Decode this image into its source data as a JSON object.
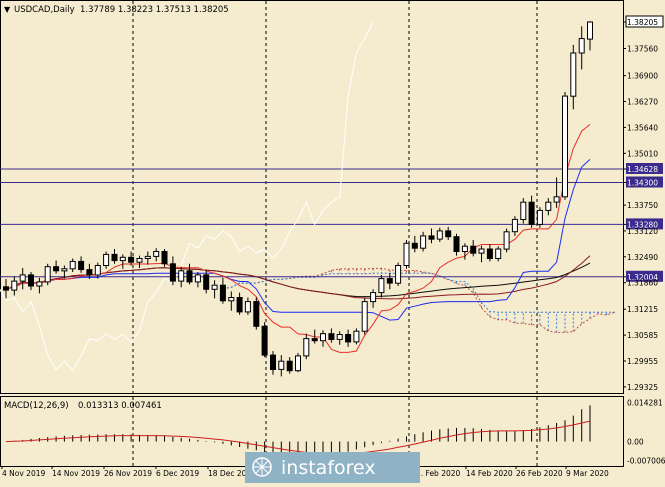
{
  "header": {
    "symbol_line": "USDCAD,Daily",
    "ohlc_line": "1.37789 1.38223 1.37513 1.38205"
  },
  "colors": {
    "background": "#f5ebcf",
    "bull_candle": "#ffffff",
    "bear_candle": "#000000",
    "tenkan": "#e8312a",
    "kijun": "#1a2cf0",
    "ma_fast": "#8b1a1a",
    "ma_slow": "#0d0d0d",
    "chikou": "#ffffff",
    "kumo_bull": "#c24b3a",
    "kumo_bear": "#3c7fd6",
    "levels": "#3b2b8c",
    "macd_hist": "#000000",
    "macd_signal": "#cc1f1f",
    "watermark_bg": "#8fb2c4"
  },
  "chart_data": [
    {
      "type": "candlestick",
      "symbol": "USDCAD",
      "timeframe": "Daily",
      "ylim": [
        1.2925,
        1.3835
      ],
      "y_ticks": [
        "1.38205",
        "1.37560",
        "1.36900",
        "1.36270",
        "1.35640",
        "1.35010",
        "1.34628",
        "1.34300",
        "1.33750",
        "1.33280",
        "1.33120",
        "1.32490",
        "1.32004",
        "1.31860",
        "1.31215",
        "1.30585",
        "1.29955",
        "1.29325"
      ],
      "x_labels": [
        "4 Nov 2019",
        "14 Nov 2019",
        "26 Nov 2019",
        "6 Dec 2019",
        "18 Dec 2019",
        "...",
        "... Feb 2020",
        "14 Feb 2020",
        "26 Feb 2020",
        "9 Mar 2020"
      ],
      "ohlc_last": {
        "open": 1.37789,
        "high": 1.38223,
        "low": 1.37513,
        "close": 1.38205
      },
      "horizontal_levels": [
        {
          "label": "1.34628",
          "value": 1.34628
        },
        {
          "label": "1.34300",
          "value": 1.343
        },
        {
          "label": "1.33280",
          "value": 1.3328
        },
        {
          "label": "1.32004",
          "value": 1.32004
        }
      ],
      "candles_ohlc": [
        [
          1.3176,
          1.3195,
          1.3148,
          1.3168
        ],
        [
          1.3168,
          1.3202,
          1.3155,
          1.319
        ],
        [
          1.319,
          1.3222,
          1.317,
          1.3205
        ],
        [
          1.3205,
          1.3212,
          1.3168,
          1.3178
        ],
        [
          1.3178,
          1.3198,
          1.316,
          1.3188
        ],
        [
          1.3188,
          1.3232,
          1.318,
          1.3225
        ],
        [
          1.3225,
          1.324,
          1.3208,
          1.3215
        ],
        [
          1.3215,
          1.3228,
          1.3196,
          1.322
        ],
        [
          1.322,
          1.3245,
          1.3212,
          1.3238
        ],
        [
          1.3238,
          1.325,
          1.321,
          1.3218
        ],
        [
          1.3218,
          1.3232,
          1.3195,
          1.3205
        ],
        [
          1.3205,
          1.3235,
          1.3196,
          1.3228
        ],
        [
          1.3228,
          1.3262,
          1.322,
          1.3255
        ],
        [
          1.3255,
          1.3268,
          1.3232,
          1.324
        ],
        [
          1.324,
          1.3255,
          1.322,
          1.3248
        ],
        [
          1.3248,
          1.3262,
          1.3228,
          1.3236
        ],
        [
          1.3236,
          1.3252,
          1.3222,
          1.3245
        ],
        [
          1.3245,
          1.3262,
          1.323,
          1.325
        ],
        [
          1.325,
          1.327,
          1.3238,
          1.3262
        ],
        [
          1.3262,
          1.3268,
          1.3225,
          1.3232
        ],
        [
          1.3232,
          1.325,
          1.318,
          1.319
        ],
        [
          1.319,
          1.3225,
          1.3175,
          1.3215
        ],
        [
          1.3215,
          1.3232,
          1.3182,
          1.3188
        ],
        [
          1.3188,
          1.3212,
          1.3175,
          1.3205
        ],
        [
          1.3205,
          1.3218,
          1.316,
          1.317
        ],
        [
          1.317,
          1.3192,
          1.3148,
          1.318
        ],
        [
          1.318,
          1.3198,
          1.3135,
          1.3142
        ],
        [
          1.3142,
          1.3165,
          1.3118,
          1.315
        ],
        [
          1.315,
          1.3162,
          1.3108,
          1.3115
        ],
        [
          1.3115,
          1.315,
          1.3108,
          1.314
        ],
        [
          1.314,
          1.315,
          1.3072,
          1.308
        ],
        [
          1.308,
          1.309,
          1.3005,
          1.301
        ],
        [
          1.301,
          1.302,
          1.2962,
          1.2975
        ],
        [
          1.2975,
          1.301,
          1.2958,
          1.2995
        ],
        [
          1.2995,
          1.3005,
          1.2965,
          1.2972
        ],
        [
          1.2972,
          1.3015,
          1.2968,
          1.3008
        ],
        [
          1.3008,
          1.3062,
          1.3,
          1.305
        ],
        [
          1.305,
          1.3072,
          1.3038,
          1.3045
        ],
        [
          1.3045,
          1.307,
          1.303,
          1.3062
        ],
        [
          1.3062,
          1.3075,
          1.304,
          1.3048
        ],
        [
          1.3048,
          1.3068,
          1.3035,
          1.306
        ],
        [
          1.306,
          1.3072,
          1.303,
          1.3042
        ],
        [
          1.3042,
          1.3075,
          1.3036,
          1.3068
        ],
        [
          1.3068,
          1.3148,
          1.306,
          1.314
        ],
        [
          1.314,
          1.317,
          1.3125,
          1.3162
        ],
        [
          1.3162,
          1.3205,
          1.315,
          1.3196
        ],
        [
          1.3196,
          1.321,
          1.317,
          1.3185
        ],
        [
          1.3185,
          1.3235,
          1.3178,
          1.3228
        ],
        [
          1.3228,
          1.329,
          1.322,
          1.3282
        ],
        [
          1.3282,
          1.33,
          1.326,
          1.327
        ],
        [
          1.327,
          1.331,
          1.3262,
          1.33
        ],
        [
          1.33,
          1.3318,
          1.3282,
          1.3292
        ],
        [
          1.3292,
          1.332,
          1.3285,
          1.3312
        ],
        [
          1.3312,
          1.3322,
          1.329,
          1.3298
        ],
        [
          1.3298,
          1.3305,
          1.3252,
          1.3262
        ],
        [
          1.3262,
          1.3282,
          1.3242,
          1.3275
        ],
        [
          1.3275,
          1.329,
          1.325,
          1.3258
        ],
        [
          1.3258,
          1.3276,
          1.3236,
          1.3268
        ],
        [
          1.3268,
          1.328,
          1.3238,
          1.3245
        ],
        [
          1.3245,
          1.3275,
          1.3238,
          1.3268
        ],
        [
          1.3268,
          1.3318,
          1.326,
          1.331
        ],
        [
          1.331,
          1.3348,
          1.33,
          1.334
        ],
        [
          1.334,
          1.3392,
          1.333,
          1.3382
        ],
        [
          1.3382,
          1.3398,
          1.332,
          1.3328
        ],
        [
          1.3328,
          1.337,
          1.332,
          1.3362
        ],
        [
          1.3362,
          1.3392,
          1.335,
          1.3382
        ],
        [
          1.3382,
          1.3442,
          1.3368,
          1.3395
        ],
        [
          1.3395,
          1.365,
          1.3388,
          1.364
        ],
        [
          1.364,
          1.3765,
          1.3608,
          1.3745
        ],
        [
          1.3745,
          1.381,
          1.3705,
          1.378
        ],
        [
          1.37789,
          1.38223,
          1.37513,
          1.38205
        ]
      ],
      "indicators": [
        "tenkan",
        "kijun",
        "senkou_span_a",
        "senkou_span_b",
        "chikou",
        "moving_average_fast",
        "moving_average_slow"
      ]
    },
    {
      "type": "macd",
      "label": "MACD(12,26,9)",
      "values_text": "0.013313 0.007461",
      "macd_last": 0.013313,
      "signal_last": 0.007461,
      "y_ticks": [
        "0.014281",
        "0.00",
        "-0.007006"
      ],
      "ylim": [
        -0.0082,
        0.0152
      ],
      "histogram": [
        0.0,
        0.0003,
        0.0006,
        0.001,
        0.0013,
        0.0016,
        0.0019,
        0.0021,
        0.0023,
        0.0024,
        0.0025,
        0.0026,
        0.0027,
        0.0027,
        0.0027,
        0.0026,
        0.0025,
        0.0024,
        0.0022,
        0.002,
        0.0017,
        0.0014,
        0.001,
        0.0006,
        0.0002,
        -0.0003,
        -0.0008,
        -0.0014,
        -0.002,
        -0.0026,
        -0.0032,
        -0.0038,
        -0.0044,
        -0.0049,
        -0.0053,
        -0.0056,
        -0.0058,
        -0.0057,
        -0.0054,
        -0.005,
        -0.0044,
        -0.0037,
        -0.0029,
        -0.0021,
        -0.0013,
        -0.0005,
        0.0003,
        0.0011,
        0.0019,
        0.0027,
        0.0034,
        0.004,
        0.0045,
        0.0048,
        0.005,
        0.005,
        0.0049,
        0.0046,
        0.0043,
        0.004,
        0.0038,
        0.0038,
        0.0041,
        0.0046,
        0.0052,
        0.006,
        0.0068,
        0.0078,
        0.0095,
        0.0118,
        0.0133
      ],
      "signal": [
        0.0,
        0.0001,
        0.0002,
        0.0004,
        0.0006,
        0.0008,
        0.001,
        0.0012,
        0.0014,
        0.0016,
        0.0017,
        0.0019,
        0.002,
        0.0021,
        0.0022,
        0.0022,
        0.0022,
        0.0022,
        0.0022,
        0.0021,
        0.002,
        0.0019,
        0.0017,
        0.0015,
        0.0012,
        0.0009,
        0.0006,
        0.0002,
        -0.0002,
        -0.0007,
        -0.0012,
        -0.0017,
        -0.0022,
        -0.0027,
        -0.0032,
        -0.0036,
        -0.004,
        -0.0043,
        -0.0045,
        -0.0046,
        -0.0046,
        -0.0045,
        -0.0043,
        -0.004,
        -0.0036,
        -0.0032,
        -0.0027,
        -0.0021,
        -0.0015,
        -0.0009,
        -0.0002,
        0.0005,
        0.0012,
        0.0018,
        0.0024,
        0.0029,
        0.0033,
        0.0036,
        0.0038,
        0.0039,
        0.0039,
        0.0039,
        0.004,
        0.0041,
        0.0043,
        0.0046,
        0.005,
        0.0055,
        0.0061,
        0.0068,
        0.0075
      ]
    }
  ],
  "watermark": {
    "text": "instaforex"
  }
}
